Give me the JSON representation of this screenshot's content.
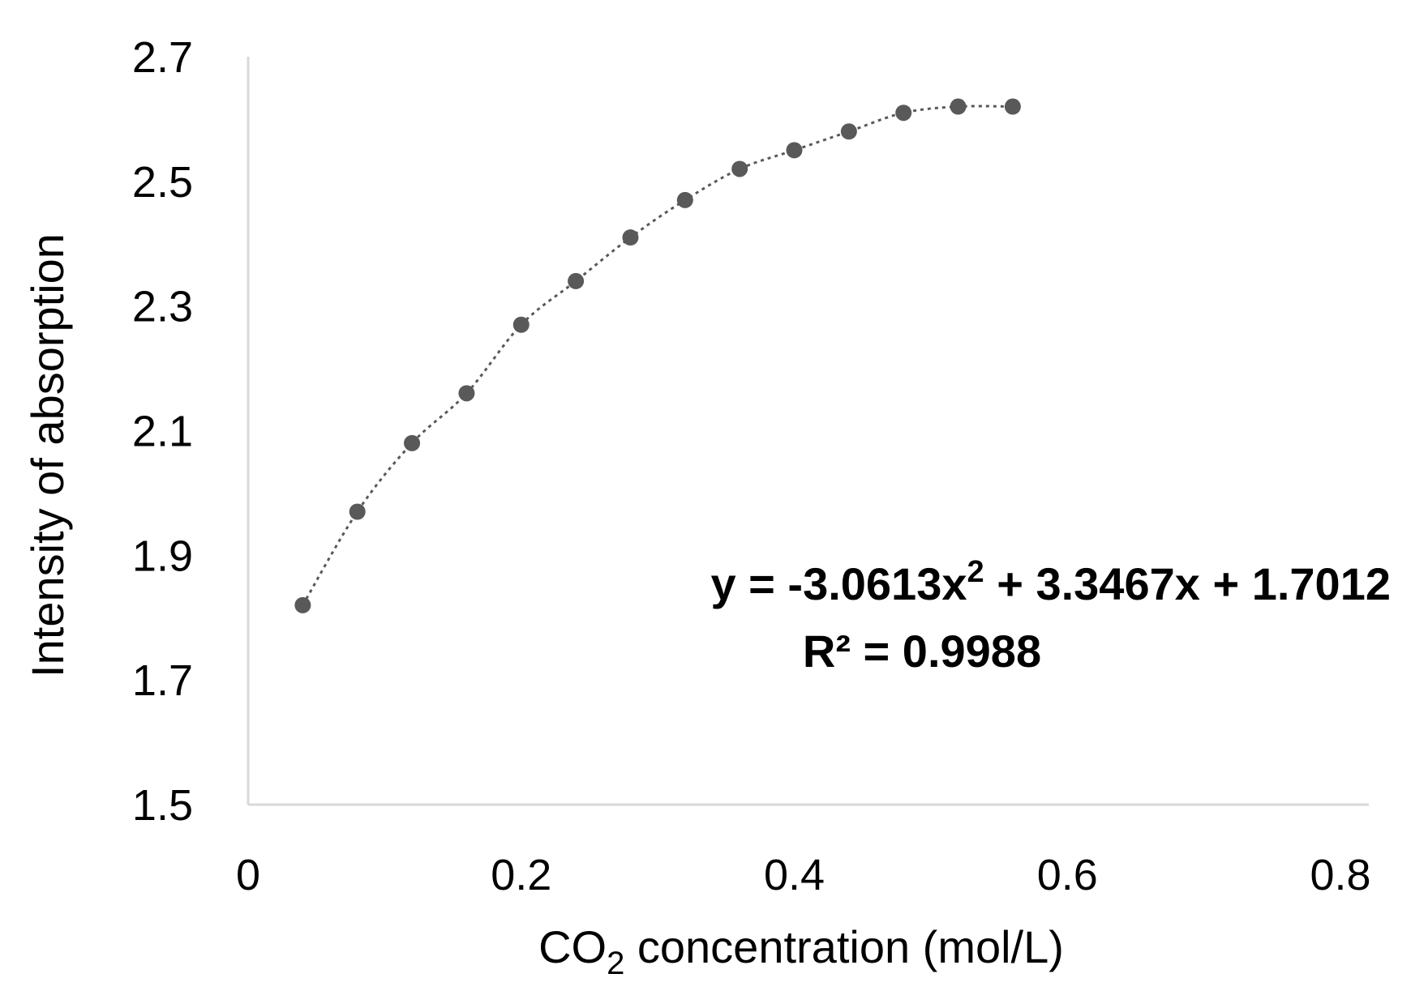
{
  "chart_data": {
    "type": "scatter",
    "xlabel": "CO",
    "xlabel_subscript": "2",
    "xlabel_suffix": " concentration (mol/L)",
    "ylabel": "Intensity of absorption",
    "xlim": [
      0,
      0.8
    ],
    "ylim": [
      1.5,
      2.7
    ],
    "x_ticks": [
      0,
      0.2,
      0.4,
      0.6,
      0.8
    ],
    "x_tick_labels": [
      "0",
      "0.2",
      "0.4",
      "0.6",
      "0.8"
    ],
    "y_ticks": [
      1.5,
      1.7,
      1.9,
      2.1,
      2.3,
      2.5,
      2.7
    ],
    "y_tick_labels": [
      "1.5",
      "1.7",
      "1.9",
      "2.1",
      "2.3",
      "2.5",
      "2.7"
    ],
    "grid": false,
    "legend": "none",
    "series": [
      {
        "x": [
          0.04,
          0.08,
          0.12,
          0.16,
          0.2,
          0.24,
          0.28,
          0.32,
          0.36,
          0.4,
          0.44,
          0.48,
          0.52,
          0.56
        ],
        "y": [
          1.82,
          1.97,
          2.08,
          2.16,
          2.27,
          2.34,
          2.41,
          2.47,
          2.52,
          2.55,
          2.58,
          2.61,
          2.62,
          2.62
        ],
        "color": "#595959"
      }
    ],
    "trendline": {
      "type": "polynomial",
      "coefficients": [
        -3.0613,
        3.3467,
        1.7012
      ],
      "style": "dotted",
      "color": "#595959"
    },
    "annotations": {
      "equation_prefix": "y = -3.0613x",
      "equation_exponent": "2",
      "equation_suffix": " + 3.3467x + 1.7012",
      "r_squared": "R² = 0.9988"
    }
  }
}
